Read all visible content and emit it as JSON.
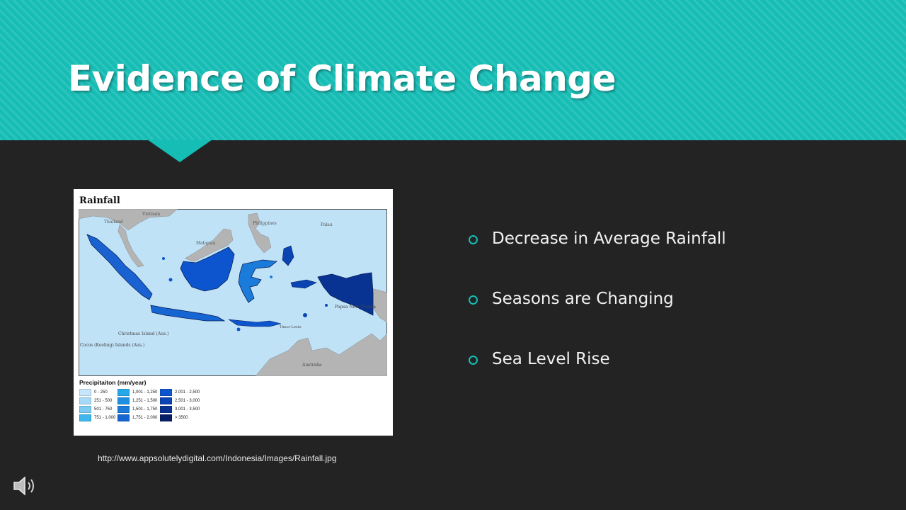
{
  "slide": {
    "title": "Evidence of Climate Change",
    "bullets": [
      {
        "text": "Decrease in Average Rainfall"
      },
      {
        "text": "Seasons are Changing"
      },
      {
        "text": "Sea Level Rise"
      }
    ],
    "caption": "http://www.appsolutelydigital.com/Indonesia/Images/Rainfall.jpg",
    "accent_color": "#16bdb5",
    "background_color": "#232323"
  },
  "figure": {
    "title": "Rainfall",
    "map_labels": {
      "vietnam": "Vietnam",
      "thailand": "Thailand",
      "philippines": "Philippines",
      "palau": "Palau",
      "malaysia": "Malaysia",
      "papua_new_guinea": "Papua New Guinea",
      "christmas_island": "Christmas Island (Aus.)",
      "cocos": "Cocos (Keeling) Islands (Aus.)",
      "australia": "Australia",
      "timor_leste": "Timor-Leste"
    },
    "legend": {
      "title": "Precipitaiton (mm/year)",
      "items": [
        {
          "label": "0 - 250",
          "color": "#c6e6fb"
        },
        {
          "label": "251 - 500",
          "color": "#a6d9f7"
        },
        {
          "label": "501 - 750",
          "color": "#7ccbf2"
        },
        {
          "label": "751 - 1,000",
          "color": "#3db7ee"
        },
        {
          "label": "1,001 - 1,250",
          "color": "#24a8ea"
        },
        {
          "label": "1,251 - 1,500",
          "color": "#1e8fe0"
        },
        {
          "label": "1,501 - 1,750",
          "color": "#1a7bda"
        },
        {
          "label": "1,751 - 2,000",
          "color": "#1566d3"
        },
        {
          "label": "2,001 - 2,500",
          "color": "#0d55cf"
        },
        {
          "label": "2,501 - 3,000",
          "color": "#0a45b3"
        },
        {
          "label": "3,001 - 3,500",
          "color": "#083392"
        },
        {
          "label": "> 3500",
          "color": "#061f66"
        }
      ]
    }
  },
  "icons": {
    "speaker": "speaker-icon",
    "bullet": "circle-bullet-icon"
  }
}
